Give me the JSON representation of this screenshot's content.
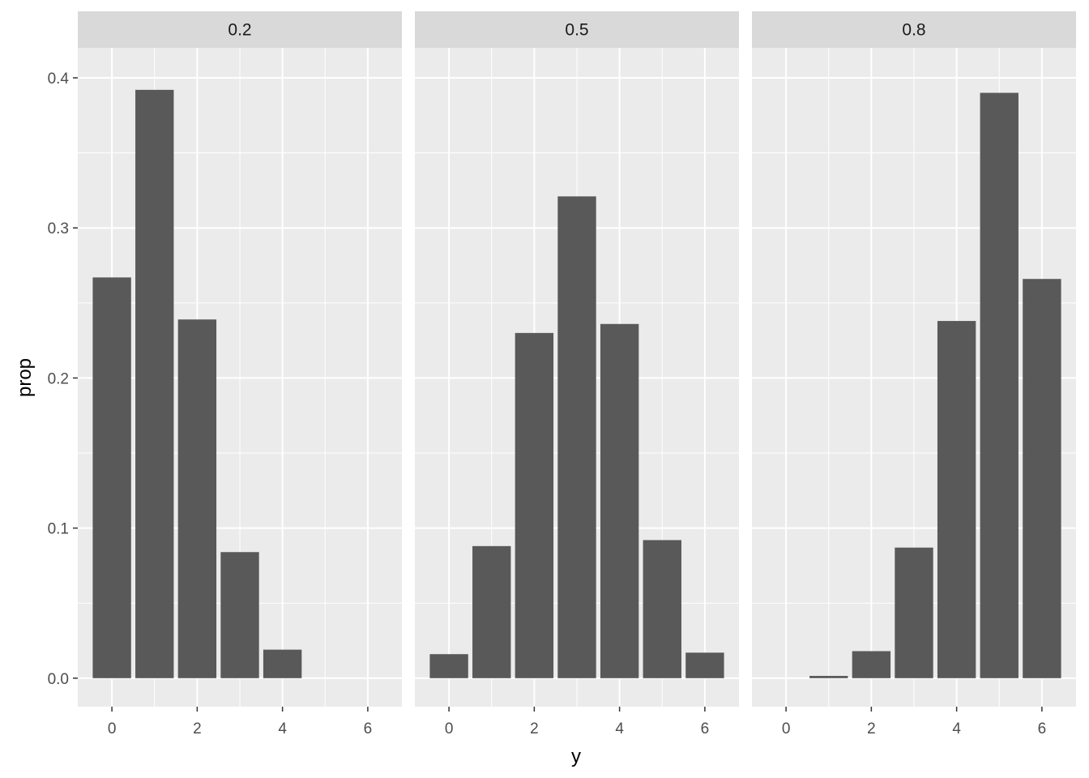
{
  "chart_data": {
    "type": "bar",
    "facet_variable_labels": [
      "0.2",
      "0.5",
      "0.8"
    ],
    "xlabel": "y",
    "ylabel": "prop",
    "x_ticks": [
      0,
      2,
      4,
      6
    ],
    "y_ticks": [
      0.0,
      0.1,
      0.2,
      0.3,
      0.4
    ],
    "y_tick_labels": [
      "0.0",
      "0.1",
      "0.2",
      "0.3",
      "0.4"
    ],
    "xlim": [
      -0.8,
      6.8
    ],
    "ylim": [
      -0.019,
      0.42
    ],
    "grid": true,
    "bar_color": "#595959",
    "panel_background": "#ebebeb",
    "strip_background": "#d9d9d9",
    "panels": [
      {
        "label": "0.2",
        "x": [
          0,
          1,
          2,
          3,
          4,
          5,
          6
        ],
        "values": [
          0.267,
          0.392,
          0.239,
          0.084,
          0.019,
          0.0,
          0.0
        ]
      },
      {
        "label": "0.5",
        "x": [
          0,
          1,
          2,
          3,
          4,
          5,
          6
        ],
        "values": [
          0.016,
          0.088,
          0.23,
          0.321,
          0.236,
          0.092,
          0.017
        ]
      },
      {
        "label": "0.8",
        "x": [
          0,
          1,
          2,
          3,
          4,
          5,
          6
        ],
        "values": [
          0.0,
          0.0015,
          0.018,
          0.087,
          0.238,
          0.39,
          0.266
        ]
      }
    ]
  }
}
